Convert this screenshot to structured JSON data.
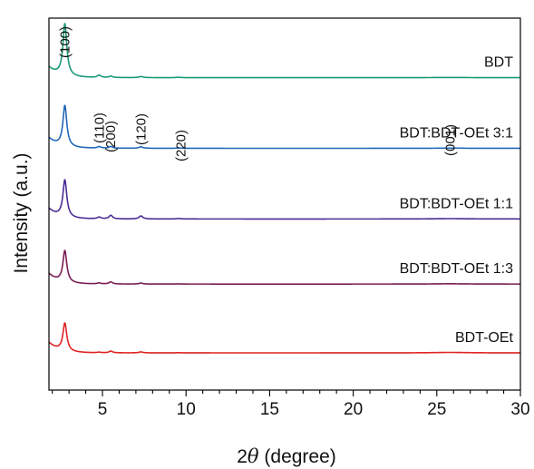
{
  "chart_data": {
    "type": "line",
    "xlabel_prefix": "2",
    "xlabel_symbol": "θ",
    "xlabel_suffix": " (degree)",
    "ylabel": "Intensity (a.u.)",
    "xlim": [
      1.8,
      30
    ],
    "x_ticks": [
      "5",
      "10",
      "15",
      "20",
      "25",
      "30"
    ],
    "x_tick_values": [
      5,
      10,
      15,
      20,
      25,
      30
    ],
    "y_ticks_shown": false,
    "grid": false,
    "peak_labels": [
      {
        "text": "(100)",
        "x": 2.75
      },
      {
        "text": "(110)",
        "x": 4.8
      },
      {
        "text": "(200)",
        "x": 5.5
      },
      {
        "text": "(120)",
        "x": 7.3
      },
      {
        "text": "(220)",
        "x": 9.7
      },
      {
        "text": "(001)",
        "x": 25.8
      }
    ],
    "peaks": [
      {
        "label": "(100)",
        "x": 2.75,
        "width": 0.14
      },
      {
        "label": "(110)",
        "x": 4.8,
        "width": 0.13
      },
      {
        "label": "(200)",
        "x": 5.5,
        "width": 0.13
      },
      {
        "label": "(120)",
        "x": 7.3,
        "width": 0.14
      },
      {
        "label": "(220)",
        "x": 9.55,
        "width": 0.15
      },
      {
        "label": "(001)",
        "x": 25.8,
        "width": 1.2
      }
    ],
    "series": [
      {
        "name": "BDT",
        "color": "#1a9a78",
        "baseline": 0.84,
        "intensities": [
          2.8,
          0.12,
          0.07,
          0.06,
          0.02,
          0.01
        ]
      },
      {
        "name": "BDT:BDT-OEt 3:1",
        "color": "#2068b8",
        "baseline": 0.65,
        "intensities": [
          2.2,
          0.08,
          0.09,
          0.08,
          0.02,
          0.01
        ]
      },
      {
        "name": "BDT:BDT-OEt 1:1",
        "color": "#4a2c95",
        "baseline": 0.46,
        "intensities": [
          2.0,
          0.09,
          0.19,
          0.16,
          0.03,
          0.02
        ]
      },
      {
        "name": "BDT:BDT-OEt 1:3",
        "color": "#7a1e55",
        "baseline": 0.285,
        "intensities": [
          1.7,
          0.05,
          0.11,
          0.05,
          0.01,
          0.015
        ]
      },
      {
        "name": "BDT-OEt",
        "color": "#e02424",
        "baseline": 0.1,
        "intensities": [
          1.5,
          0.03,
          0.09,
          0.05,
          0.01,
          0.025
        ]
      }
    ]
  }
}
